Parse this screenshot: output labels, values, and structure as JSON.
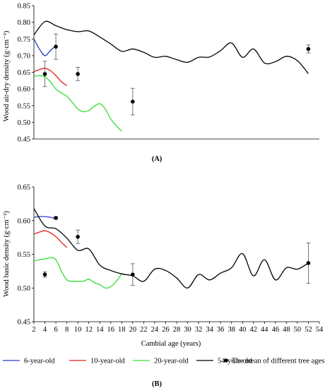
{
  "figure": {
    "legend": [
      {
        "label": "6-year-old",
        "color": "#2b3dbf",
        "kind": "line"
      },
      {
        "label": "10-year-old",
        "color": "#e02020",
        "kind": "line"
      },
      {
        "label": "20-year-old",
        "color": "#33dd33",
        "kind": "line"
      },
      {
        "label": "54-year-old",
        "color": "#000000",
        "kind": "line"
      },
      {
        "label": "The mean of different tree ages",
        "color": "#000000",
        "kind": "marker"
      }
    ]
  },
  "chart_data": [
    {
      "type": "line",
      "panel_label": "(A)",
      "ylabel": "Wood air-dry density (g·cm⁻³)",
      "xlabel": "",
      "ylim": [
        0.45,
        0.85
      ],
      "yticks": [
        "0.45",
        "0.50",
        "0.55",
        "0.60",
        "0.65",
        "0.70",
        "0.75",
        "0.80",
        "0.85"
      ],
      "xlim": [
        2,
        54
      ],
      "grid": false,
      "series": [
        {
          "name": "6-year-old",
          "color": "#2b3dbf",
          "x": [
            2,
            3,
            4,
            5,
            6
          ],
          "y": [
            0.75,
            0.72,
            0.7,
            0.715,
            0.73
          ]
        },
        {
          "name": "10-year-old",
          "color": "#e02020",
          "x": [
            2,
            3,
            4,
            5,
            6,
            7,
            8
          ],
          "y": [
            0.652,
            0.658,
            0.662,
            0.655,
            0.64,
            0.622,
            0.61
          ]
        },
        {
          "name": "20-year-old",
          "color": "#33dd33",
          "x": [
            2,
            3,
            4,
            5,
            6,
            7,
            8,
            9,
            10,
            11,
            12,
            13,
            14,
            15,
            16,
            17,
            18
          ],
          "y": [
            0.638,
            0.64,
            0.637,
            0.622,
            0.6,
            0.588,
            0.578,
            0.56,
            0.54,
            0.532,
            0.535,
            0.548,
            0.556,
            0.54,
            0.51,
            0.49,
            0.473
          ]
        },
        {
          "name": "54-year-old",
          "color": "#000000",
          "x": [
            2,
            4,
            6,
            8,
            10,
            12,
            14,
            16,
            18,
            20,
            22,
            24,
            26,
            28,
            30,
            32,
            34,
            36,
            38,
            40,
            42,
            44,
            46,
            48,
            50,
            52
          ],
          "y": [
            0.762,
            0.802,
            0.79,
            0.778,
            0.772,
            0.774,
            0.756,
            0.735,
            0.713,
            0.72,
            0.71,
            0.695,
            0.698,
            0.688,
            0.68,
            0.695,
            0.696,
            0.715,
            0.738,
            0.695,
            0.72,
            0.678,
            0.682,
            0.698,
            0.685,
            0.646
          ]
        }
      ],
      "means": [
        {
          "x": 4,
          "y": 0.645,
          "err": 0.038
        },
        {
          "x": 6,
          "y": 0.727,
          "err": 0.038
        },
        {
          "x": 10,
          "y": 0.645,
          "err": 0.02
        },
        {
          "x": 20,
          "y": 0.562,
          "err": 0.04
        },
        {
          "x": 52,
          "y": 0.72,
          "err": 0.012
        }
      ]
    },
    {
      "type": "line",
      "panel_label": "(B)",
      "ylabel": "Wood basic density (g·cm⁻³)",
      "xlabel": "Cambial age (years)",
      "ylim": [
        0.45,
        0.65
      ],
      "yticks": [
        "0.45",
        "0.50",
        "0.55",
        "0.60",
        "0.65"
      ],
      "xlim": [
        2,
        54
      ],
      "xticks": [
        "2",
        "4",
        "6",
        "8",
        "10",
        "12",
        "14",
        "16",
        "18",
        "20",
        "22",
        "24",
        "26",
        "28",
        "30",
        "32",
        "34",
        "36",
        "38",
        "40",
        "42",
        "44",
        "46",
        "48",
        "50",
        "52",
        "54"
      ],
      "grid": false,
      "series": [
        {
          "name": "6-year-old",
          "color": "#2b3dbf",
          "x": [
            2,
            3,
            4,
            5,
            6
          ],
          "y": [
            0.605,
            0.606,
            0.606,
            0.605,
            0.603
          ]
        },
        {
          "name": "10-year-old",
          "color": "#e02020",
          "x": [
            2,
            3,
            4,
            5,
            6,
            7,
            8
          ],
          "y": [
            0.58,
            0.583,
            0.585,
            0.582,
            0.576,
            0.568,
            0.56
          ]
        },
        {
          "name": "20-year-old",
          "color": "#33dd33",
          "x": [
            2,
            3,
            4,
            5,
            6,
            7,
            8,
            9,
            10,
            11,
            12,
            13,
            14,
            15,
            16,
            17,
            18
          ],
          "y": [
            0.54,
            0.542,
            0.543,
            0.545,
            0.542,
            0.525,
            0.512,
            0.51,
            0.51,
            0.51,
            0.513,
            0.508,
            0.505,
            0.5,
            0.502,
            0.51,
            0.521
          ]
        },
        {
          "name": "54-year-old",
          "color": "#000000",
          "x": [
            2,
            4,
            6,
            8,
            10,
            12,
            14,
            16,
            18,
            20,
            22,
            24,
            26,
            28,
            30,
            32,
            34,
            36,
            38,
            40,
            42,
            44,
            46,
            48,
            50,
            52
          ],
          "y": [
            0.618,
            0.592,
            0.588,
            0.574,
            0.556,
            0.558,
            0.534,
            0.526,
            0.521,
            0.518,
            0.51,
            0.528,
            0.526,
            0.515,
            0.5,
            0.52,
            0.512,
            0.522,
            0.53,
            0.551,
            0.518,
            0.542,
            0.512,
            0.53,
            0.528,
            0.537
          ]
        }
      ],
      "means": [
        {
          "x": 4,
          "y": 0.52,
          "err": 0.004
        },
        {
          "x": 6,
          "y": 0.604,
          "err": 0.002
        },
        {
          "x": 10,
          "y": 0.576,
          "err": 0.01
        },
        {
          "x": 20,
          "y": 0.52,
          "err": 0.016
        },
        {
          "x": 52,
          "y": 0.537,
          "err": 0.03
        }
      ]
    }
  ]
}
